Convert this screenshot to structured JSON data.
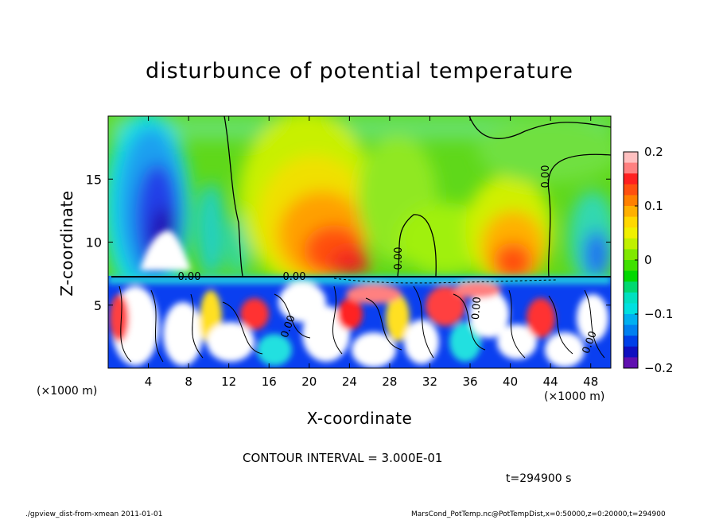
{
  "chart_data": {
    "type": "heatmap",
    "title": "disturbunce of potential temperature",
    "xlabel": "X-coordinate",
    "ylabel": "Z-coordinate",
    "x_unit_left": "(×1000 m)",
    "x_unit_right": "(×1000 m)",
    "xlim": [
      0,
      50
    ],
    "ylim": [
      0,
      20
    ],
    "x_ticks": [
      4,
      8,
      12,
      16,
      20,
      24,
      28,
      32,
      36,
      40,
      44,
      48
    ],
    "y_ticks": [
      5,
      10,
      15
    ],
    "colorbar": {
      "min": -0.2,
      "max": 0.2,
      "ticks": [
        0.2,
        0.1,
        0,
        -0.1,
        -0.2
      ],
      "tick_labels": [
        "0.2",
        "0.1",
        "0",
        "−0.1",
        "−0.2"
      ]
    },
    "contour_labels": [
      "0.00",
      "0.00",
      "0.00",
      "0.00",
      "0.00",
      "0.00",
      "0.00"
    ],
    "contour_interval": "CONTOUR INTERVAL = 3.000E-01",
    "time": "t=294900 s",
    "fields": {
      "warm_lobes": [
        {
          "x": 21.0,
          "z": 11.0,
          "value": 0.16
        },
        {
          "x": 40.5,
          "z": 9.5,
          "value": 0.13
        }
      ],
      "cold_lobe": {
        "x": 5.5,
        "z": 13.0,
        "value": -0.18
      },
      "boundary_layer_top_z": 7.3
    }
  },
  "footer": {
    "left": "./gpview_dist-from-xmean  2011-01-01",
    "right": "MarsCond_PotTemp.nc@PotTempDist,x=0:50000,z=0:20000,t=294900"
  }
}
